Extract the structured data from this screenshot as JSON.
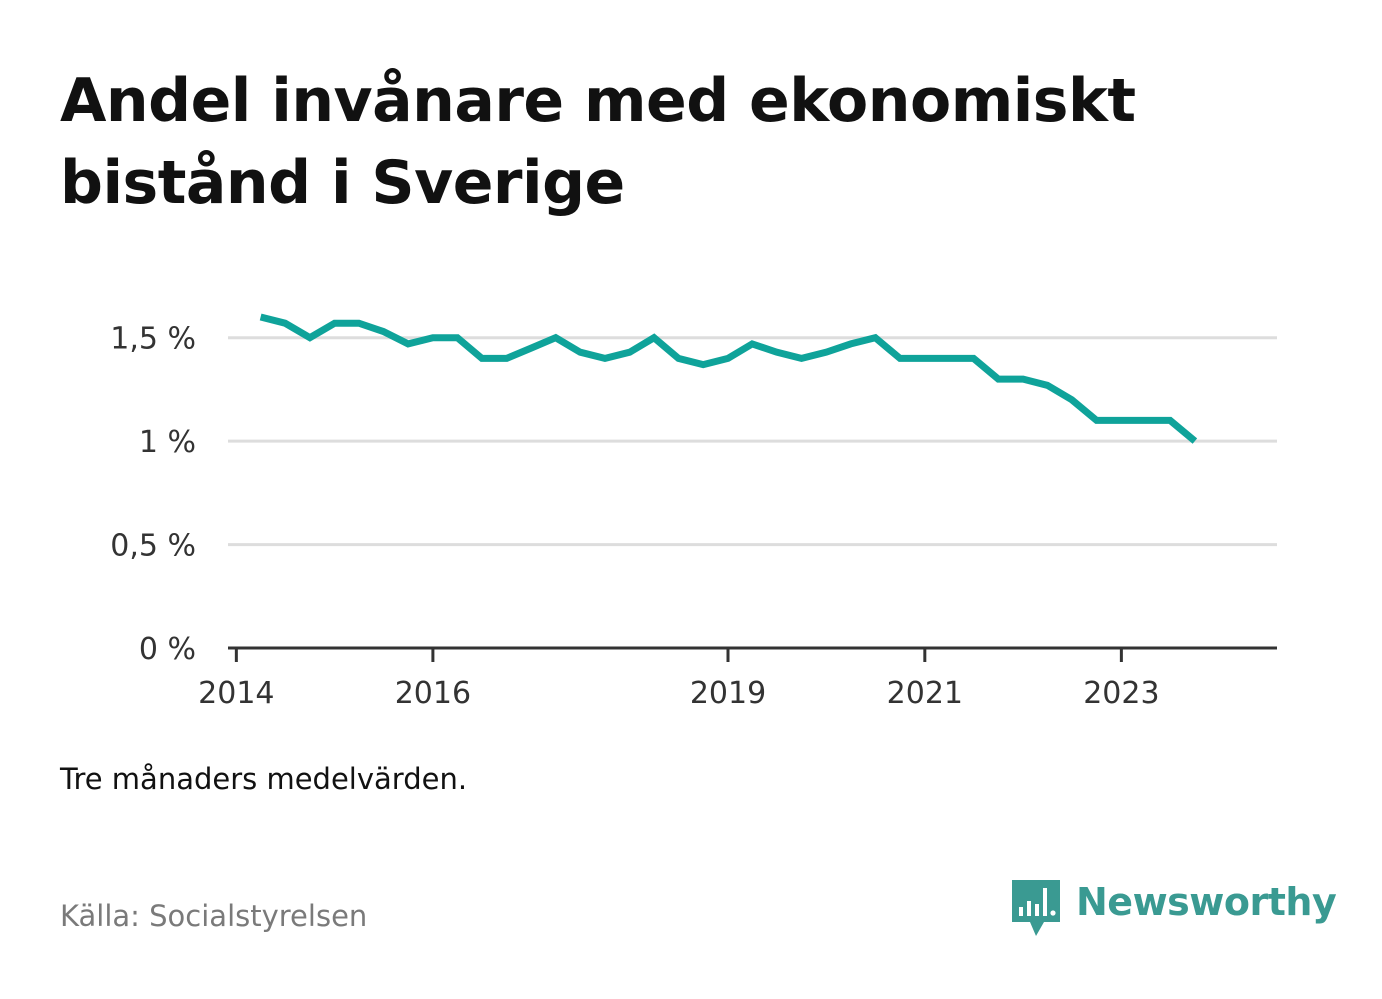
{
  "title": "Andel invånare med ekonomiskt bistånd i Sverige",
  "note": "Tre månaders medelvärden.",
  "source": "Källa: Socialstyrelsen",
  "brand": {
    "name": "Newsworthy",
    "icon": "speech-bubble-bar-chart-icon",
    "color": "#3a9a92"
  },
  "chart_data": {
    "type": "line",
    "title": "Andel invånare med ekonomiskt bistånd i Sverige",
    "xlabel": "",
    "ylabel": "",
    "line_color": "#0fa39a",
    "grid": true,
    "legend": "none",
    "xlim": [
      "2013-12-01",
      "2024-08-01"
    ],
    "ylim": [
      0,
      1.6
    ],
    "y_ticks": [
      {
        "value": 0,
        "label": "0 %"
      },
      {
        "value": 0.5,
        "label": "0,5 %"
      },
      {
        "value": 1,
        "label": "1 %"
      },
      {
        "value": 1.5,
        "label": "1,5 %"
      }
    ],
    "x_ticks": [
      {
        "date": "2014-01-01",
        "label": "2014"
      },
      {
        "date": "2016-01-01",
        "label": "2016"
      },
      {
        "date": "2019-01-01",
        "label": "2019"
      },
      {
        "date": "2021-01-01",
        "label": "2021"
      },
      {
        "date": "2023-01-01",
        "label": "2023"
      }
    ],
    "series": [
      {
        "x": [
          "2014-04-01",
          "2014-07-01",
          "2014-10-01",
          "2015-01-01",
          "2015-04-01",
          "2015-07-01",
          "2015-10-01",
          "2016-01-01",
          "2016-04-01",
          "2016-07-01",
          "2016-10-01",
          "2017-01-01",
          "2017-04-01",
          "2017-07-01",
          "2017-10-01",
          "2018-01-01",
          "2018-04-01",
          "2018-07-01",
          "2018-10-01",
          "2019-01-01",
          "2019-04-01",
          "2019-07-01",
          "2019-10-01",
          "2020-01-01",
          "2020-04-01",
          "2020-07-01",
          "2020-10-01",
          "2021-01-01",
          "2021-04-01",
          "2021-07-01",
          "2021-10-01",
          "2022-01-01",
          "2022-04-01",
          "2022-07-01",
          "2022-10-01",
          "2023-01-01",
          "2023-04-01",
          "2023-07-01",
          "2023-10-01"
        ],
        "values": [
          1.6,
          1.57,
          1.5,
          1.57,
          1.57,
          1.53,
          1.47,
          1.5,
          1.5,
          1.4,
          1.4,
          1.45,
          1.5,
          1.43,
          1.4,
          1.43,
          1.5,
          1.4,
          1.37,
          1.4,
          1.47,
          1.43,
          1.4,
          1.43,
          1.47,
          1.5,
          1.4,
          1.4,
          1.4,
          1.4,
          1.3,
          1.3,
          1.27,
          1.2,
          1.1,
          1.1,
          1.1,
          1.1,
          1.0
        ]
      }
    ]
  }
}
